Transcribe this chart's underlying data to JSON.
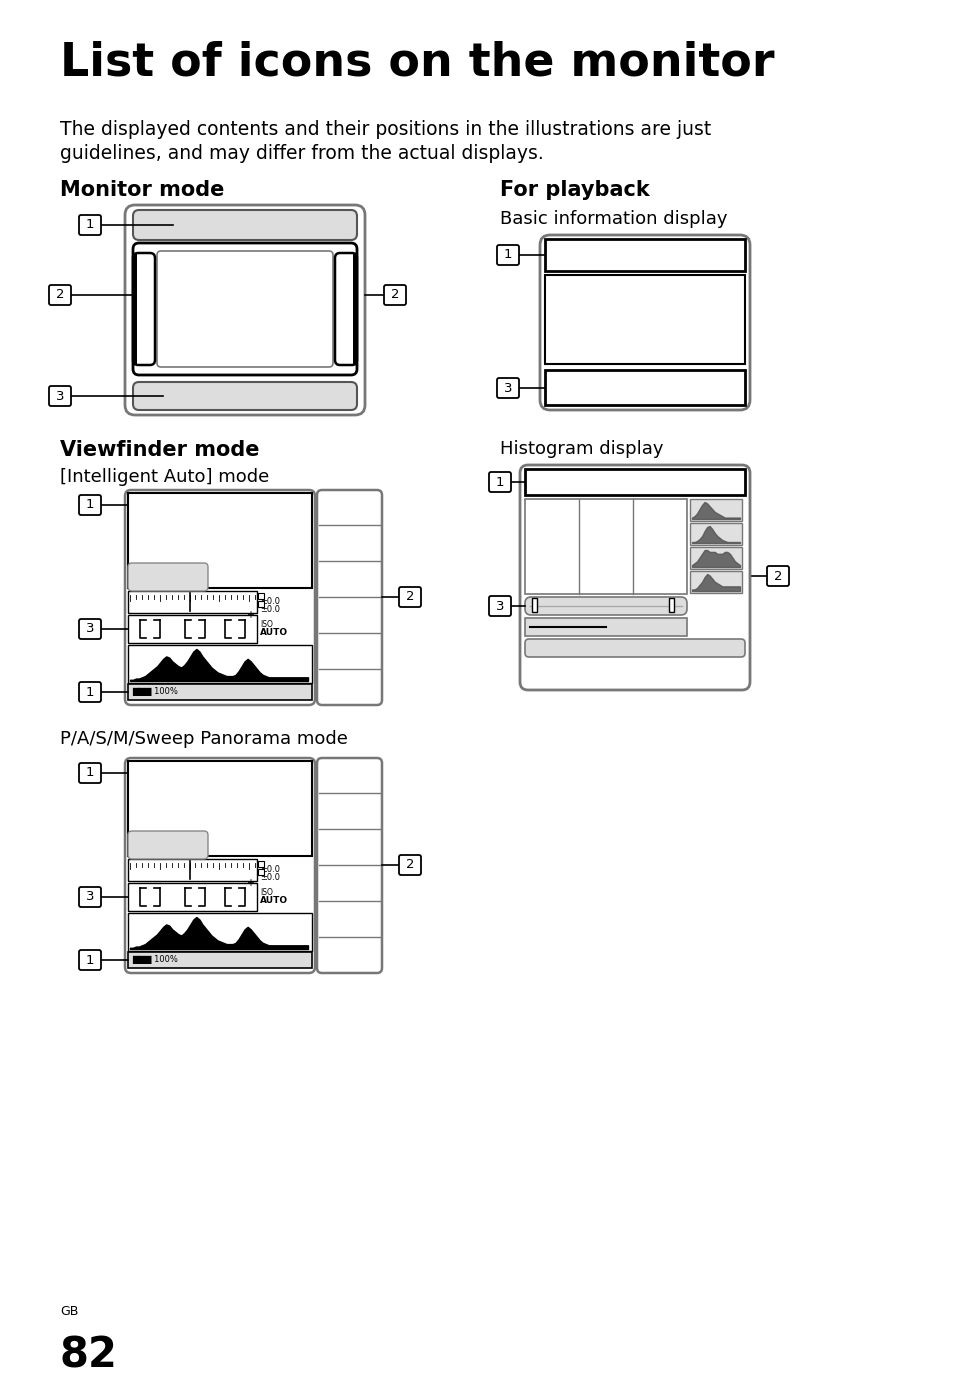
{
  "title": "List of icons on the monitor",
  "subtitle_line1": "The displayed contents and their positions in the illustrations are just",
  "subtitle_line2": "guidelines, and may differ from the actual displays.",
  "bg_color": "#ffffff",
  "page_number": "82",
  "page_label": "GB"
}
